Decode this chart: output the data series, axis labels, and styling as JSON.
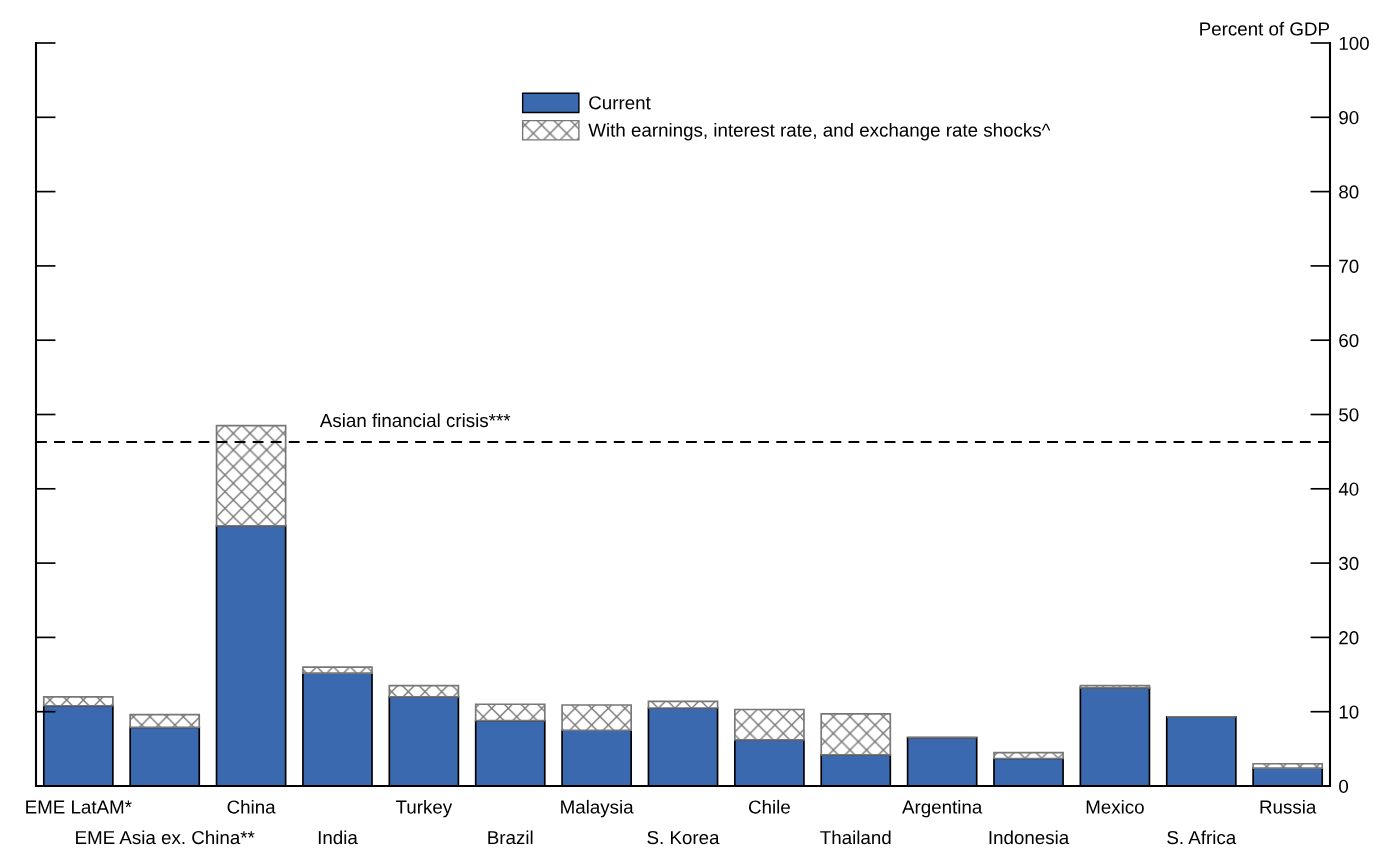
{
  "chart_data": {
    "type": "bar",
    "stacked": true,
    "ylabel": "Percent of GDP",
    "categories": [
      "EME LatAM*",
      "EME Asia ex. China**",
      "China",
      "India",
      "Turkey",
      "Brazil",
      "Malaysia",
      "S. Korea",
      "Chile",
      "Thailand",
      "Argentina",
      "Indonesia",
      "Mexico",
      "S. Africa",
      "Russia"
    ],
    "series": [
      {
        "name": "Current",
        "color": "#3a69b0",
        "values": [
          10.8,
          7.9,
          35.0,
          15.2,
          12.0,
          8.8,
          7.5,
          10.5,
          6.2,
          4.2,
          6.5,
          3.7,
          13.2,
          9.3,
          2.4
        ]
      },
      {
        "name": "With earnings, interest rate, and exchange rate shocks^",
        "color": "#777777",
        "values": [
          1.2,
          1.7,
          13.5,
          0.8,
          1.5,
          2.2,
          3.4,
          0.9,
          4.1,
          5.5,
          0,
          0.8,
          0.3,
          0,
          0.6
        ]
      }
    ],
    "ylim": [
      0,
      100
    ],
    "yticks": [
      0,
      10,
      20,
      30,
      40,
      50,
      60,
      70,
      80,
      90,
      100
    ],
    "ref_lines": [
      {
        "axis": "y",
        "value": 46.3,
        "label": "Asian financial crisis***",
        "line_style": "dashed",
        "color": "#000000"
      }
    ],
    "grid": false,
    "legend": "top"
  }
}
